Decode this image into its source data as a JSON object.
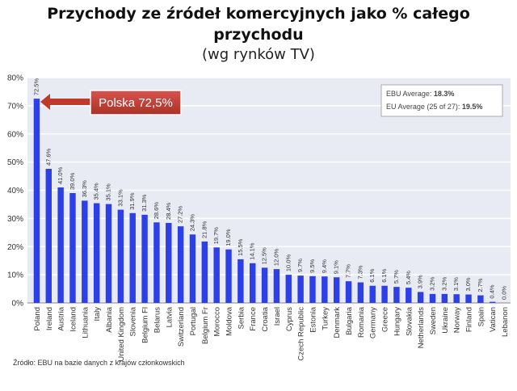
{
  "title": "Przychody ze źródeł komercyjnych jako % całego przychodu",
  "subtitle": "(wg rynków TV)",
  "source_note": "Źródło: EBU na bazie danych z krajów członkowskich",
  "callout": {
    "label": "Polska 72,5%",
    "color": "#c0392b"
  },
  "legend": {
    "ebu_label": "EBU Average: ",
    "ebu_value": "18.3%",
    "eu_label": "EU Average (25 of 27): ",
    "eu_value": "19.5%"
  },
  "colors": {
    "bar": "#2d3fe6",
    "highlight_bar": "#2d3fe6",
    "plot_bg": "#e8ebf4",
    "grid": "#ffffff"
  },
  "chart_data": {
    "type": "bar",
    "title": "Przychody ze źródeł komercyjnych jako % całego przychodu",
    "xlabel": "",
    "ylabel": "",
    "ylim": [
      0,
      80
    ],
    "yticks": [
      "0%",
      "10%",
      "20%",
      "30%",
      "40%",
      "50%",
      "60%",
      "70%",
      "80%"
    ],
    "categories": [
      "Poland",
      "Ireland",
      "Austria",
      "Iceland",
      "Lithuania",
      "Italy",
      "Albania",
      "United Kingdom",
      "Slovenia",
      "Belgium Fl",
      "Belarus",
      "Latvia",
      "Switzerland",
      "Portugal",
      "Belgium Fr",
      "Morocco",
      "Moldova",
      "Serbia",
      "France",
      "Croatia",
      "Israel",
      "Cyprus",
      "Czech Republic",
      "Estonia",
      "Turkey",
      "Denmark",
      "Bulgaria",
      "Romania",
      "Germany",
      "Greece",
      "Hungary",
      "Slovakia",
      "Netherlands",
      "Sweden",
      "Ukraine",
      "Norway",
      "Finland",
      "Spain",
      "Vatican",
      "Lebanon"
    ],
    "values": [
      72.5,
      47.6,
      41.0,
      39.0,
      36.3,
      35.4,
      35.1,
      33.1,
      31.9,
      31.3,
      28.6,
      28.4,
      27.2,
      24.3,
      21.8,
      19.7,
      19.0,
      15.5,
      14.1,
      12.5,
      12.0,
      10.0,
      9.7,
      9.5,
      9.4,
      9.1,
      7.7,
      7.3,
      6.1,
      6.1,
      5.7,
      5.4,
      3.9,
      3.2,
      3.2,
      3.1,
      3.0,
      2.7,
      0.4,
      0.0
    ],
    "labels": [
      "72.5%",
      "47.6%",
      "41.0%",
      "39.0%",
      "36.3%",
      "35.4%",
      "35.1%",
      "33.1%",
      "31.9%",
      "31.3%",
      "28.6%",
      "28.4%",
      "27.2%",
      "24.3%",
      "21.8%",
      "19.7%",
      "19.0%",
      "15.5%",
      "14.1%",
      "12.5%",
      "12.0%",
      "10.0%",
      "9.7%",
      "9.5%",
      "9.4%",
      "9.1%",
      "7.7%",
      "7.3%",
      "6.1%",
      "6.1%",
      "5.7%",
      "5.4%",
      "3.9%",
      "3.2%",
      "3.2%",
      "3.1%",
      "3.0%",
      "2.7%",
      "0.4%",
      "0.0%"
    ]
  }
}
